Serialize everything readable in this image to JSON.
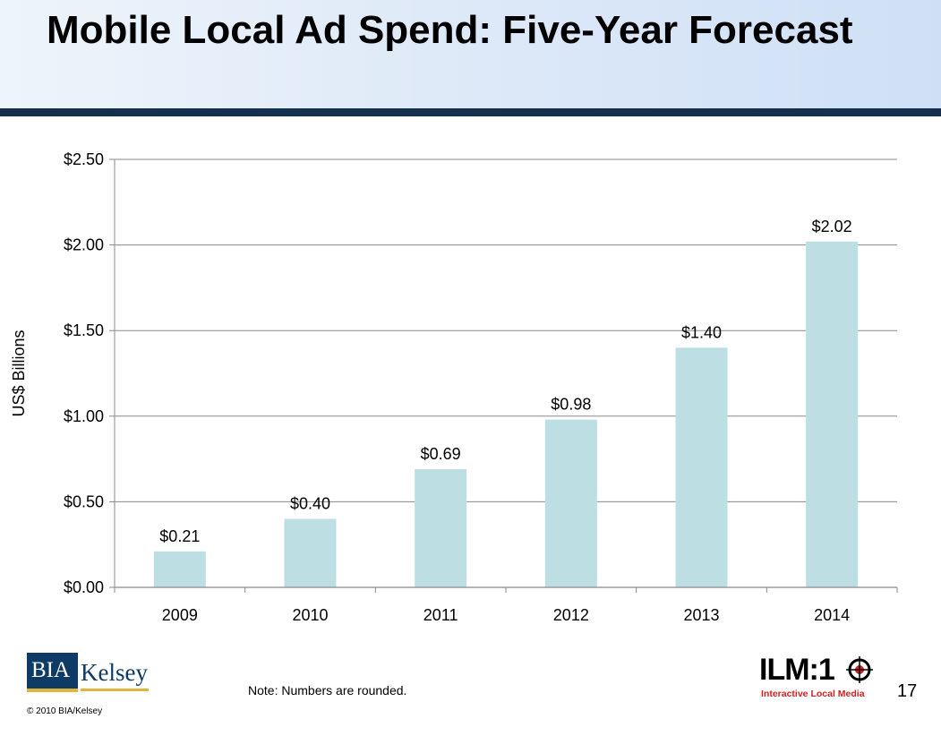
{
  "header": {
    "title": "Mobile Local Ad Spend: Five-Year Forecast"
  },
  "chart_data": {
    "type": "bar",
    "categories": [
      "2009",
      "2010",
      "2011",
      "2012",
      "2013",
      "2014"
    ],
    "values": [
      0.21,
      0.4,
      0.69,
      0.98,
      1.4,
      2.02
    ],
    "data_labels": [
      "$0.21",
      "$0.40",
      "$0.69",
      "$0.98",
      "$1.40",
      "$2.02"
    ],
    "ylabel": "US$ Billions",
    "ylim": [
      0,
      2.5
    ],
    "yticks": [
      0,
      0.5,
      1.0,
      1.5,
      2.0,
      2.5
    ],
    "ytick_labels": [
      "$0.00",
      "$0.50",
      "$1.00",
      "$1.50",
      "$2.00",
      "$2.50"
    ],
    "grid": true,
    "legend": "none",
    "bar_color": "#bddfe3"
  },
  "footer": {
    "note": "Note: Numbers are rounded.",
    "copyright": "© 2010 BIA/Kelsey",
    "page_number": "17",
    "bia_logo_text": "BIA",
    "kelsey_logo_text": "Kelsey",
    "ilm_logo_text": "ILM:1",
    "ilm_logo_subtitle": "Interactive Local Media"
  }
}
